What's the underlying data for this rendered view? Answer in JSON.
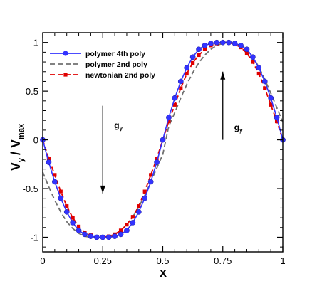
{
  "chart_data": {
    "type": "line",
    "xlabel": "x",
    "ylabel": "V",
    "ylabel_sub1": "y",
    "ylabel_sep": "/ V",
    "ylabel_sub2": "max",
    "xlim": [
      0,
      1
    ],
    "ylim": [
      -1.15,
      1.1
    ],
    "x_ticks": [
      0,
      0.25,
      0.5,
      0.75,
      1
    ],
    "x_tick_labels": [
      "0",
      "0.25",
      "0.5",
      "0.75",
      "1"
    ],
    "y_ticks": [
      -1,
      -0.5,
      0,
      0.5,
      1
    ],
    "y_tick_labels": [
      "-1",
      "-0.5",
      "0",
      "0.5",
      "1"
    ],
    "legend_position": "top-left",
    "series": [
      {
        "name": "polymer 4th poly",
        "color": "#3333ff",
        "dash": "solid",
        "marker": "circle",
        "x": [
          0,
          0.025,
          0.05,
          0.075,
          0.1,
          0.125,
          0.15,
          0.175,
          0.2,
          0.225,
          0.25,
          0.275,
          0.3,
          0.325,
          0.35,
          0.375,
          0.4,
          0.425,
          0.45,
          0.475,
          0.5,
          0.525,
          0.55,
          0.575,
          0.6,
          0.625,
          0.65,
          0.675,
          0.7,
          0.725,
          0.75,
          0.775,
          0.8,
          0.825,
          0.85,
          0.875,
          0.9,
          0.925,
          0.95,
          0.975,
          1
        ],
        "y": [
          0,
          -0.23,
          -0.43,
          -0.6,
          -0.74,
          -0.85,
          -0.93,
          -0.97,
          -0.99,
          -1.0,
          -1.0,
          -1.0,
          -0.99,
          -0.97,
          -0.93,
          -0.85,
          -0.74,
          -0.6,
          -0.43,
          -0.23,
          0,
          0.23,
          0.43,
          0.6,
          0.74,
          0.85,
          0.93,
          0.97,
          0.99,
          1.0,
          1.0,
          1.0,
          0.99,
          0.97,
          0.93,
          0.85,
          0.74,
          0.6,
          0.43,
          0.23,
          0
        ]
      },
      {
        "name": "polymer 2nd poly",
        "color": "#707070",
        "dash": "dashed",
        "marker": "none",
        "x": [
          0,
          0.025,
          0.05,
          0.075,
          0.1,
          0.125,
          0.15,
          0.175,
          0.2,
          0.225,
          0.25,
          0.275,
          0.3,
          0.325,
          0.35,
          0.375,
          0.4,
          0.425,
          0.45,
          0.475,
          0.5,
          0.525,
          0.55,
          0.575,
          0.6,
          0.625,
          0.65,
          0.675,
          0.7,
          0.725,
          0.75,
          0.775,
          0.8,
          0.825,
          0.85,
          0.875,
          0.9,
          0.925,
          0.95,
          0.975,
          1
        ],
        "y": [
          -0.33,
          -0.48,
          -0.62,
          -0.74,
          -0.84,
          -0.91,
          -0.96,
          -0.99,
          -1.0,
          -1.0,
          -1.0,
          -0.99,
          -0.97,
          -0.93,
          -0.87,
          -0.79,
          -0.69,
          -0.57,
          -0.43,
          -0.29,
          -0.15,
          0.14,
          0.28,
          0.43,
          0.57,
          0.69,
          0.79,
          0.87,
          0.93,
          0.97,
          0.99,
          1.0,
          1.0,
          0.98,
          0.93,
          0.85,
          0.75,
          0.62,
          0.48,
          0.33,
          0.18
        ]
      },
      {
        "name": "newtonian 2nd poly",
        "color": "#e00000",
        "dash": "dashed",
        "marker": "square",
        "x": [
          0,
          0.025,
          0.05,
          0.075,
          0.1,
          0.125,
          0.15,
          0.175,
          0.2,
          0.225,
          0.25,
          0.275,
          0.3,
          0.325,
          0.35,
          0.375,
          0.4,
          0.425,
          0.45,
          0.475,
          0.5,
          0.525,
          0.55,
          0.575,
          0.6,
          0.625,
          0.65,
          0.675,
          0.7,
          0.725,
          0.75,
          0.775,
          0.8,
          0.825,
          0.85,
          0.875,
          0.9,
          0.925,
          0.95,
          0.975,
          1
        ],
        "y": [
          0,
          -0.19,
          -0.36,
          -0.53,
          -0.68,
          -0.8,
          -0.89,
          -0.95,
          -0.98,
          -1.0,
          -1.0,
          -0.99,
          -0.97,
          -0.93,
          -0.87,
          -0.79,
          -0.68,
          -0.53,
          -0.36,
          -0.19,
          0,
          0.19,
          0.36,
          0.53,
          0.68,
          0.79,
          0.87,
          0.93,
          0.97,
          0.99,
          1.0,
          1.0,
          0.98,
          0.95,
          0.89,
          0.8,
          0.68,
          0.53,
          0.36,
          0.19,
          0
        ]
      }
    ],
    "annotations": [
      {
        "text": "g",
        "sub": "y",
        "direction": "down",
        "x": 0.25,
        "y_start": 0.35,
        "y_end": -0.55
      },
      {
        "text": "g",
        "sub": "y",
        "direction": "up",
        "x": 0.75,
        "y_start": 0,
        "y_end": 0.7
      }
    ]
  }
}
